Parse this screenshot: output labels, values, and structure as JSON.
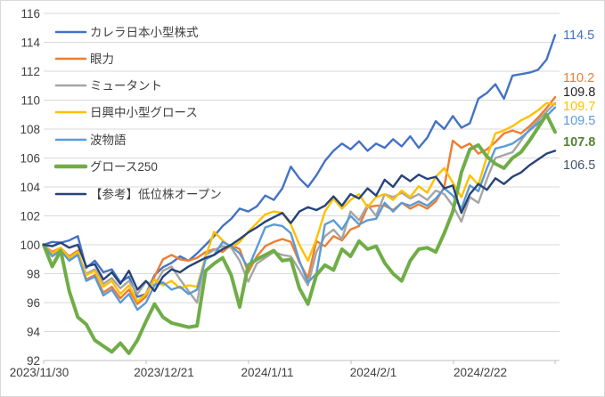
{
  "chart_data": {
    "type": "line",
    "title": "",
    "xlabel": "",
    "ylabel": "",
    "ylim": [
      92,
      116
    ],
    "y_tick_step": 2,
    "y_tick_labels": [
      "92",
      "94",
      "96",
      "98",
      "100",
      "102",
      "104",
      "106",
      "108",
      "110",
      "112",
      "114",
      "116"
    ],
    "x_tick_labels": [
      "2023/11/30",
      "2023/12/21",
      "2024/1/11",
      "2024/2/1",
      "2024/2/22"
    ],
    "grid": "horizontal",
    "legend_position": "top-left-inside",
    "series": [
      {
        "name": "カレラ日本小型株式",
        "color": "#4472C4",
        "thick": false,
        "end_label": {
          "text": "114.5",
          "color": "#4472C4",
          "bold": false
        },
        "values": [
          100,
          100.2,
          100.15,
          100.3,
          100.6,
          98.4,
          98.9,
          98.1,
          98.3,
          97.4,
          97.8,
          96.4,
          96.6,
          97.9,
          98.45,
          98.75,
          99.2,
          98.9,
          99.4,
          100.0,
          100.6,
          101.3,
          101.8,
          102.5,
          102.3,
          102.65,
          103.4,
          103.1,
          103.9,
          105.4,
          104.6,
          104.0,
          104.8,
          105.8,
          106.5,
          107.0,
          106.6,
          107.15,
          106.5,
          107.0,
          106.7,
          107.3,
          106.8,
          107.5,
          106.7,
          107.4,
          108.55,
          108.0,
          108.9,
          108.1,
          108.4,
          110.1,
          110.5,
          111.1,
          110.1,
          111.7,
          111.8,
          111.9,
          112.1,
          112.8,
          114.5
        ]
      },
      {
        "name": "眼力",
        "color": "#ED7D31",
        "thick": false,
        "end_label": {
          "text": "110.2",
          "color": "#ED7D31",
          "bold": false
        },
        "values": [
          100,
          99.5,
          99.8,
          99.2,
          99.6,
          97.6,
          97.9,
          96.7,
          97.1,
          96.3,
          96.9,
          95.9,
          96.4,
          97.8,
          99.0,
          99.3,
          99.0,
          98.9,
          99.1,
          99.5,
          99.7,
          99.5,
          100.0,
          99.7,
          98.1,
          99.2,
          99.9,
          100.2,
          100.4,
          100.2,
          98.8,
          97.7,
          100.25,
          99.9,
          100.6,
          100.3,
          101.05,
          101.3,
          102.6,
          102.7,
          102.7,
          102.4,
          102.9,
          102.5,
          102.8,
          102.5,
          103.0,
          104.0,
          107.2,
          106.7,
          107.0,
          106.3,
          106.6,
          107.1,
          107.7,
          107.9,
          107.7,
          108.2,
          108.8,
          109.45,
          110.2
        ]
      },
      {
        "name": "ミュータント",
        "color": "#A5A5A5",
        "thick": false,
        "end_label": {
          "text": "109.8",
          "color": "#262626",
          "bold": false
        },
        "values": [
          100,
          99.3,
          99.7,
          99.0,
          99.4,
          98.0,
          98.3,
          97.3,
          97.7,
          97.0,
          97.5,
          96.6,
          97.45,
          97.2,
          98.2,
          98.5,
          97.6,
          96.8,
          96.0,
          99.3,
          99.65,
          99.9,
          99.8,
          98.9,
          97.45,
          98.7,
          99.1,
          99.5,
          99.3,
          99.2,
          98.25,
          97.2,
          99.5,
          100.6,
          101.05,
          100.4,
          102.3,
          101.7,
          102.75,
          102.0,
          103.5,
          103.3,
          103.6,
          103.2,
          103.5,
          103.1,
          103.75,
          103.5,
          102.7,
          101.6,
          103.3,
          102.9,
          104.55,
          106.0,
          106.2,
          106.4,
          107.2,
          108.0,
          108.6,
          109.2,
          109.8
        ]
      },
      {
        "name": "日興中小型グロース",
        "color": "#FFC000",
        "thick": false,
        "end_label": {
          "text": "109.7",
          "color": "#FFC000",
          "bold": false
        },
        "values": [
          100,
          99.4,
          99.8,
          99.1,
          99.5,
          97.9,
          98.2,
          97.1,
          97.5,
          96.6,
          97.2,
          96.1,
          96.6,
          97.6,
          97.2,
          97.5,
          97.0,
          97.2,
          97.1,
          99.2,
          100.9,
          100.3,
          99.8,
          100.2,
          100.9,
          101.5,
          102.1,
          102.3,
          102.2,
          101.4,
          100.0,
          98.9,
          100.4,
          102.3,
          103.2,
          102.5,
          103.1,
          103.5,
          102.6,
          103.3,
          103.5,
          103.1,
          103.75,
          103.3,
          104.05,
          103.6,
          104.7,
          105.3,
          104.3,
          103.3,
          104.8,
          104.15,
          106.1,
          107.7,
          107.9,
          108.2,
          108.6,
          108.9,
          109.3,
          109.8,
          109.7
        ]
      },
      {
        "name": "波物語",
        "color": "#5B9BD5",
        "thick": false,
        "end_label": {
          "text": "109.5",
          "color": "#5B9BD5",
          "bold": false
        },
        "values": [
          100,
          99.2,
          99.6,
          98.9,
          99.3,
          97.5,
          97.8,
          96.5,
          96.9,
          96.0,
          96.6,
          95.5,
          96.0,
          97.2,
          97.4,
          96.9,
          97.1,
          96.6,
          96.9,
          99.0,
          99.3,
          100.2,
          99.9,
          99.4,
          98.4,
          99.8,
          101.2,
          101.4,
          101.3,
          100.8,
          98.9,
          97.4,
          98.0,
          101.4,
          101.7,
          101.05,
          102.0,
          101.4,
          101.7,
          101.8,
          102.9,
          102.3,
          102.9,
          102.7,
          103.0,
          102.7,
          103.2,
          103.9,
          103.4,
          102.5,
          104.1,
          103.7,
          105.3,
          106.65,
          106.8,
          107.0,
          107.4,
          107.9,
          108.4,
          108.9,
          109.5
        ]
      },
      {
        "name": "グロース250",
        "color": "#70AD47",
        "thick": true,
        "end_label": {
          "text": "107.8",
          "color": "#548235",
          "bold": true
        },
        "values": [
          100,
          98.5,
          99.6,
          96.8,
          95.0,
          94.5,
          93.4,
          93.0,
          92.6,
          93.2,
          92.5,
          93.4,
          94.7,
          95.9,
          95.0,
          94.6,
          94.45,
          94.3,
          94.4,
          98.2,
          98.7,
          99.1,
          97.9,
          95.7,
          98.6,
          99.0,
          99.3,
          99.6,
          98.9,
          99.0,
          97.0,
          95.9,
          97.9,
          98.6,
          98.25,
          99.7,
          99.2,
          100.25,
          99.7,
          99.9,
          98.75,
          98.0,
          97.5,
          98.9,
          99.7,
          99.8,
          99.5,
          100.8,
          102.3,
          105.0,
          106.6,
          106.9,
          106.1,
          105.6,
          105.3,
          106.0,
          106.4,
          107.2,
          108.1,
          109.0,
          107.8
        ]
      },
      {
        "name": "【参考】低位株オープン",
        "color": "#264478",
        "thick": false,
        "end_label": {
          "text": "106.5",
          "color": "#44546A",
          "bold": false
        },
        "values": [
          100,
          99.9,
          100.15,
          99.8,
          100.0,
          98.5,
          98.65,
          97.6,
          98.1,
          97.3,
          98.2,
          96.9,
          97.5,
          96.8,
          97.8,
          98.3,
          98.1,
          98.5,
          98.8,
          99.1,
          99.3,
          99.7,
          100.0,
          100.4,
          100.85,
          101.2,
          101.6,
          101.9,
          102.2,
          101.5,
          102.3,
          102.6,
          102.4,
          102.7,
          103.35,
          102.7,
          103.5,
          103.2,
          103.9,
          103.4,
          104.5,
          104.0,
          104.8,
          104.4,
          104.85,
          104.55,
          104.7,
          103.9,
          104.1,
          102.2,
          103.5,
          104.2,
          103.8,
          104.6,
          104.2,
          104.7,
          105.0,
          105.5,
          105.9,
          106.3,
          106.5
        ]
      }
    ],
    "colors": {
      "grid": "#D9D9D9",
      "axis_line": "#BFBFBF",
      "axis_text": "#404040",
      "background": "#FFFFFF"
    }
  }
}
